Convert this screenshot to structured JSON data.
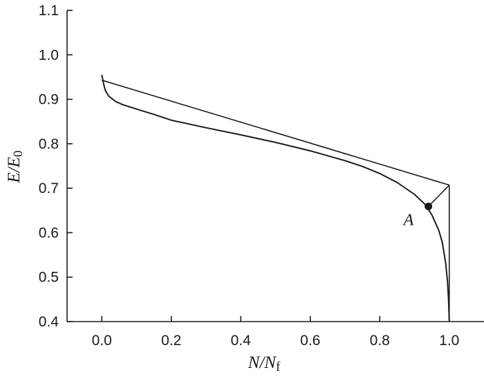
{
  "chart_data": {
    "type": "line",
    "title": "",
    "xlabel": {
      "main": "N/N",
      "sub": "f"
    },
    "ylabel": {
      "main": "E/E",
      "sub": "0"
    },
    "xlim": [
      -0.1,
      1.1
    ],
    "ylim": [
      0.4,
      1.1
    ],
    "x_ticks": [
      0.0,
      0.2,
      0.4,
      0.6,
      0.8,
      1.0
    ],
    "x_tick_labels": [
      "0.0",
      "0.2",
      "0.4",
      "0.6",
      "0.8",
      "1.0"
    ],
    "y_ticks": [
      0.4,
      0.5,
      0.6,
      0.7,
      0.8,
      0.9,
      1.0,
      1.1
    ],
    "y_tick_labels": [
      "0.4",
      "0.5",
      "0.6",
      "0.7",
      "0.8",
      "0.9",
      "1.0",
      "1.1"
    ],
    "grid": false,
    "series": [
      {
        "x": [
          0.0,
          0.005,
          0.01,
          0.02,
          0.04,
          0.06,
          0.1,
          0.15,
          0.2,
          0.3,
          0.4,
          0.5,
          0.6,
          0.7,
          0.75,
          0.8,
          0.85,
          0.9,
          0.93,
          0.95,
          0.97,
          0.98,
          0.99,
          0.995,
          0.998,
          1.0
        ],
        "y": [
          0.955,
          0.935,
          0.92,
          0.907,
          0.895,
          0.888,
          0.878,
          0.866,
          0.853,
          0.836,
          0.82,
          0.803,
          0.784,
          0.762,
          0.749,
          0.733,
          0.713,
          0.686,
          0.664,
          0.64,
          0.605,
          0.578,
          0.53,
          0.49,
          0.45,
          0.4
        ]
      }
    ],
    "tangent_line": {
      "x": [
        0.0,
        1.0
      ],
      "y": [
        0.943,
        0.707
      ]
    },
    "vertical_line": {
      "x": [
        1.0,
        1.0
      ],
      "y": [
        0.4,
        0.707
      ]
    },
    "connector_line": {
      "x": [
        0.94,
        1.0
      ],
      "y": [
        0.659,
        0.707
      ]
    },
    "annotations": [
      {
        "label": "A",
        "x": 0.94,
        "y": 0.659
      }
    ]
  }
}
